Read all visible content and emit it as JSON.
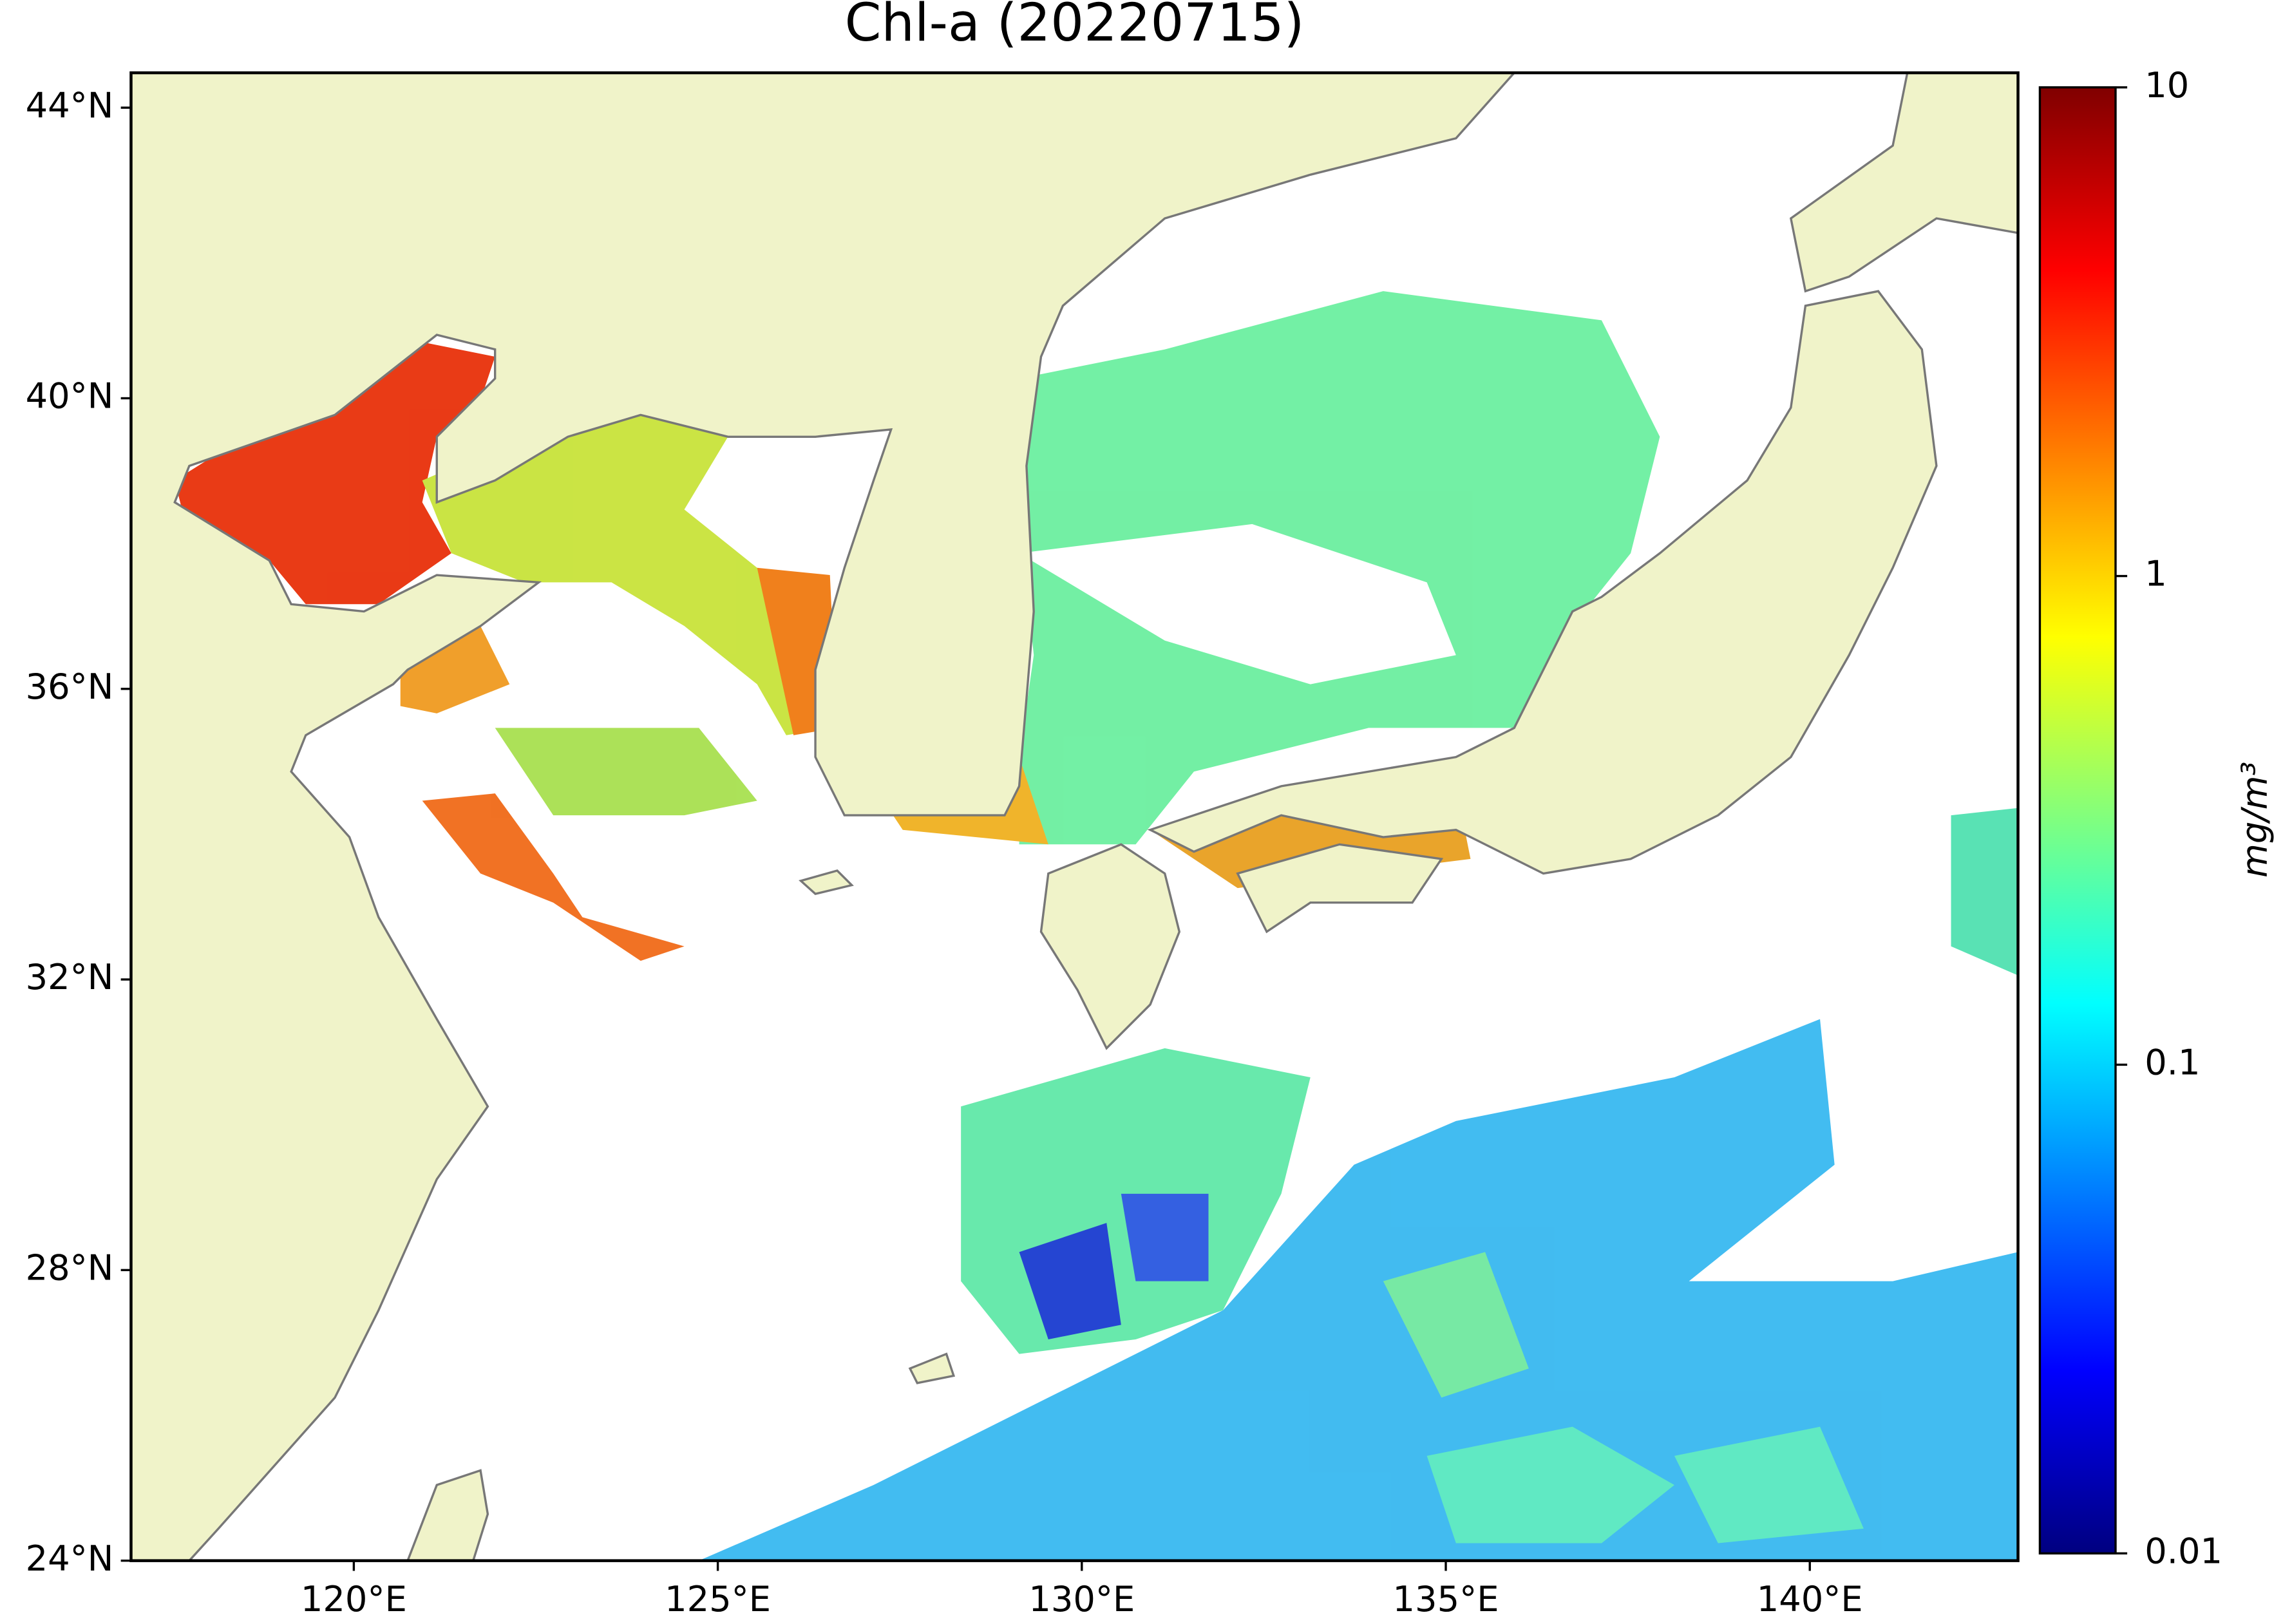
{
  "title": "Chl-a (20220715)",
  "map": {
    "xlim": [
      116.94,
      142.86
    ],
    "ylim": [
      24,
      44.48
    ],
    "xticks": [
      {
        "value": 120,
        "label": "120°E"
      },
      {
        "value": 125,
        "label": "125°E"
      },
      {
        "value": 130,
        "label": "130°E"
      },
      {
        "value": 135,
        "label": "135°E"
      },
      {
        "value": 140,
        "label": "140°E"
      }
    ],
    "yticks": [
      {
        "value": 24,
        "label": "24°N"
      },
      {
        "value": 28,
        "label": "28°N"
      },
      {
        "value": 32,
        "label": "32°N"
      },
      {
        "value": 36,
        "label": "36°N"
      },
      {
        "value": 40,
        "label": "40°N"
      },
      {
        "value": 44,
        "label": "44°N"
      }
    ]
  },
  "colorbar": {
    "scale": "log",
    "colormap": "jet",
    "lim": [
      0.01,
      10
    ],
    "ticks": [
      0.01,
      0.1,
      1,
      10
    ],
    "label": "mg/m³"
  }
}
